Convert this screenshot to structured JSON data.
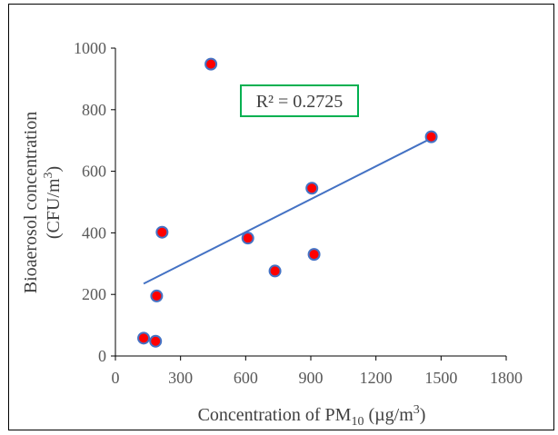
{
  "chart_data": {
    "type": "scatter",
    "title": "",
    "xlabel": {
      "prefix": "Concentration of PM",
      "sub": "10",
      "suffix": " (µg/m",
      "sup": "3",
      "end": ")"
    },
    "ylabel": {
      "line1": "Bioaerosol concentration",
      "line2_prefix": "(CFU/m",
      "line2_sup": "3",
      "line2_end": ")"
    },
    "xlim": [
      0,
      1800
    ],
    "ylim": [
      0,
      1000
    ],
    "xticks": [
      "0",
      "300",
      "600",
      "900",
      "1200",
      "1500",
      "1800"
    ],
    "yticks": [
      "0",
      "200",
      "400",
      "600",
      "800",
      "1000"
    ],
    "points": [
      {
        "x": 130,
        "y": 58
      },
      {
        "x": 185,
        "y": 48
      },
      {
        "x": 190,
        "y": 195
      },
      {
        "x": 215,
        "y": 402
      },
      {
        "x": 440,
        "y": 948
      },
      {
        "x": 610,
        "y": 383
      },
      {
        "x": 735,
        "y": 276
      },
      {
        "x": 905,
        "y": 545
      },
      {
        "x": 915,
        "y": 330
      },
      {
        "x": 1455,
        "y": 712
      }
    ],
    "trendline": {
      "x": [
        130,
        1455
      ],
      "y": [
        235,
        707
      ]
    },
    "annotation": "R² = 0.2725",
    "grid": false,
    "legend": "none",
    "colors": {
      "marker_fill": "#ff0000",
      "marker_edge": "#4472c4",
      "trendline": "#4472c4",
      "annotation_border": "#00b050",
      "axis": "#000000"
    }
  }
}
